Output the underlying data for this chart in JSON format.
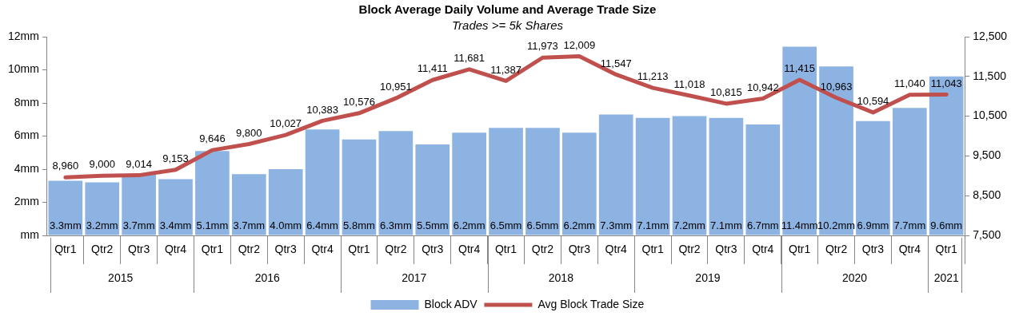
{
  "chart_data": {
    "type": "bar",
    "title": "Block Average Daily Volume and Average Trade Size",
    "subtitle": "Trades >= 5k Shares",
    "categories": [
      "Qtr1",
      "Qtr2",
      "Qtr3",
      "Qtr4",
      "Qtr1",
      "Qtr2",
      "Qtr3",
      "Qtr4",
      "Qtr1",
      "Qtr2",
      "Qtr3",
      "Qtr4",
      "Qtr1",
      "Qtr2",
      "Qtr3",
      "Qtr4",
      "Qtr1",
      "Qtr2",
      "Qtr3",
      "Qtr4",
      "Qtr1",
      "Qtr2",
      "Qtr3",
      "Qtr4",
      "Qtr1"
    ],
    "annotations": [
      "2015",
      "2016",
      "2017",
      "2018",
      "2019",
      "2020",
      "2021"
    ],
    "series": [
      {
        "name": "Block ADV",
        "color": "#8db3e2",
        "values": [
          3.3,
          3.2,
          3.7,
          3.4,
          5.1,
          3.7,
          4.0,
          6.4,
          5.8,
          6.3,
          5.5,
          6.2,
          6.5,
          6.5,
          6.2,
          7.3,
          7.1,
          7.2,
          7.1,
          6.7,
          11.4,
          10.2,
          6.9,
          7.7,
          9.6
        ],
        "value_labels": [
          "3.3mm",
          "3.2mm",
          "3.7mm",
          "3.4mm",
          "5.1mm",
          "3.7mm",
          "4.0mm",
          "6.4mm",
          "5.8mm",
          "6.3mm",
          "5.5mm",
          "6.2mm",
          "6.5mm",
          "6.5mm",
          "6.2mm",
          "7.3mm",
          "7.1mm",
          "7.2mm",
          "7.1mm",
          "6.7mm",
          "11.4mm",
          "10.2mm",
          "6.9mm",
          "7.7mm",
          "9.6mm"
        ]
      },
      {
        "name": "Avg Block Trade Size",
        "type": "line",
        "axis": "y2",
        "color": "#c0504d",
        "values": [
          8960,
          9000,
          9014,
          9153,
          9646,
          9800,
          10027,
          10383,
          10576,
          10951,
          11411,
          11681,
          11387,
          11973,
          12009,
          11547,
          11213,
          11018,
          10815,
          10942,
          11415,
          10963,
          10594,
          11040,
          11043
        ],
        "value_labels": [
          "8,960",
          "9,000",
          "9,014",
          "9,153",
          "9,646",
          "9,800",
          "10,027",
          "10,383",
          "10,576",
          "10,951",
          "11,411",
          "11,681",
          "11,387",
          "11,973",
          "12,009",
          "11,547",
          "11,213",
          "11,018",
          "10,815",
          "10,942",
          "11,415",
          "10,963",
          "10,594",
          "11,040",
          "11,043"
        ]
      }
    ],
    "ylim": [
      0,
      12
    ],
    "yticks": [
      {
        "value": 0,
        "label": "mm"
      },
      {
        "value": 2,
        "label": "2mm"
      },
      {
        "value": 4,
        "label": "4mm"
      },
      {
        "value": 6,
        "label": "6mm"
      },
      {
        "value": 8,
        "label": "8mm"
      },
      {
        "value": 10,
        "label": "10mm"
      },
      {
        "value": 12,
        "label": "12mm"
      }
    ],
    "y2lim": [
      7500,
      12500
    ],
    "y2ticks": [
      {
        "value": 7500,
        "label": "7,500"
      },
      {
        "value": 8500,
        "label": "8,500"
      },
      {
        "value": 9500,
        "label": "9,500"
      },
      {
        "value": 10500,
        "label": "10,500"
      },
      {
        "value": 11500,
        "label": "11,500"
      },
      {
        "value": 12500,
        "label": "12,500"
      }
    ],
    "grid": false,
    "legend": "bottom",
    "marker": "none"
  }
}
